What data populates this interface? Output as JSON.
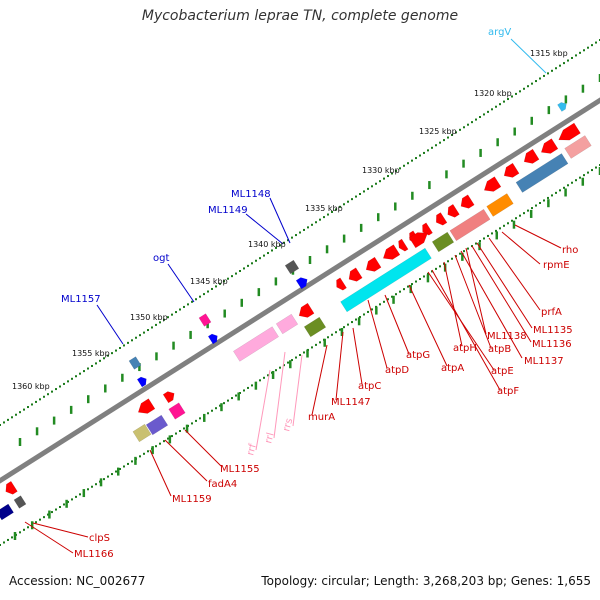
{
  "title": "Mycobacterium leprae TN, complete genome",
  "footer": {
    "accession": "Accession: NC_002677",
    "summary": "Topology: circular; Length: 3,268,203 bp; Genes: 1,655"
  },
  "colors": {
    "backbone": "#808080",
    "forward_ticks": "#228b22",
    "reverse_ticks": "#228b22",
    "gene_red": "#ff0000",
    "label_blue": "#0000cc",
    "label_red": "#cc0000",
    "label_pink": "#ff99bb",
    "label_cyan": "#33bbee"
  },
  "kbp_markers": [
    {
      "label": "1315 kbp"
    },
    {
      "label": "1320 kbp"
    },
    {
      "label": "1325 kbp"
    },
    {
      "label": "1330 kbp"
    },
    {
      "label": "1335 kbp"
    },
    {
      "label": "1340 kbp"
    },
    {
      "label": "1345 kbp"
    },
    {
      "label": "1350 kbp"
    },
    {
      "label": "1355 kbp"
    },
    {
      "label": "1360 kbp"
    }
  ],
  "forward_gene_labels": [
    {
      "label": "argV",
      "color": "#33bbee"
    },
    {
      "label": "ML1148",
      "color": "#0000cc"
    },
    {
      "label": "ML1149",
      "color": "#0000cc"
    },
    {
      "label": "ogt",
      "color": "#0000cc"
    },
    {
      "label": "ML1157",
      "color": "#0000cc"
    }
  ],
  "reverse_gene_labels": [
    {
      "label": "rho",
      "color": "#cc0000"
    },
    {
      "label": "rpmE",
      "color": "#cc0000"
    },
    {
      "label": "prfA",
      "color": "#cc0000"
    },
    {
      "label": "ML1135",
      "color": "#cc0000"
    },
    {
      "label": "ML1138",
      "color": "#cc0000"
    },
    {
      "label": "ML1136",
      "color": "#cc0000"
    },
    {
      "label": "atpH",
      "color": "#cc0000"
    },
    {
      "label": "atpB",
      "color": "#cc0000"
    },
    {
      "label": "ML1137",
      "color": "#cc0000"
    },
    {
      "label": "atpG",
      "color": "#cc0000"
    },
    {
      "label": "atpA",
      "color": "#cc0000"
    },
    {
      "label": "atpE",
      "color": "#cc0000"
    },
    {
      "label": "atpF",
      "color": "#cc0000"
    },
    {
      "label": "atpD",
      "color": "#cc0000"
    },
    {
      "label": "atpC",
      "color": "#cc0000"
    },
    {
      "label": "ML1147",
      "color": "#cc0000"
    },
    {
      "label": "murA",
      "color": "#cc0000"
    },
    {
      "label": "rrs",
      "color": "#ff99bb"
    },
    {
      "label": "rrl",
      "color": "#ff99bb"
    },
    {
      "label": "rrf",
      "color": "#ff99bb"
    },
    {
      "label": "ML1155",
      "color": "#cc0000"
    },
    {
      "label": "fadA4",
      "color": "#cc0000"
    },
    {
      "label": "ML1159",
      "color": "#cc0000"
    },
    {
      "label": "clpS",
      "color": "#cc0000"
    },
    {
      "label": "ML1166",
      "color": "#cc0000"
    }
  ]
}
